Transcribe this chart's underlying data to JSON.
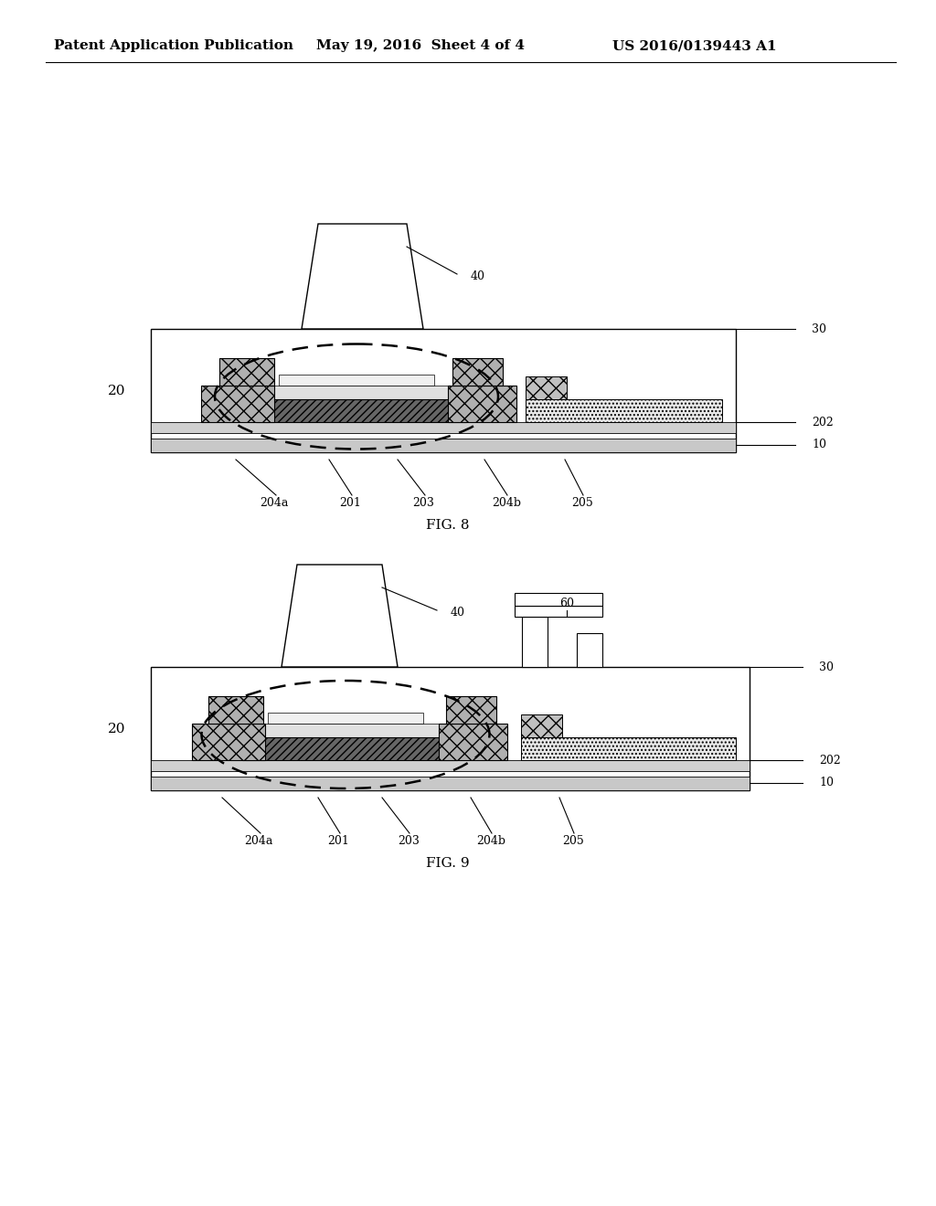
{
  "title_line1": "Patent Application Publication",
  "title_line2": "May 19, 2016  Sheet 4 of 4",
  "title_line3": "US 2016/0139443 A1",
  "fig8_caption": "FIG. 8",
  "fig9_caption": "FIG. 9",
  "label_20": "20",
  "label_40": "40",
  "label_60": "60",
  "label_30": "30",
  "label_10": "10",
  "label_202": "202",
  "label_201": "201",
  "label_203": "203",
  "label_204a": "204a",
  "label_204b": "204b",
  "label_205": "205",
  "bg_color": "#ffffff"
}
